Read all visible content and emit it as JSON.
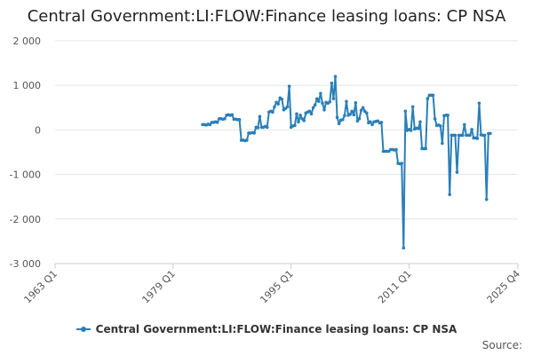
{
  "chart_data": {
    "type": "line",
    "title": "Central Government:LI:FLOW:Finance leasing loans: CP NSA",
    "xlabel": "",
    "ylabel": "",
    "x_tick_labels": [
      "1963 Q1",
      "1979 Q1",
      "1995 Q1",
      "2011 Q1",
      "2025 Q4"
    ],
    "x_tick_years": [
      1963.0,
      1979.0,
      1995.0,
      2011.0,
      2025.75
    ],
    "xlim": [
      1963.0,
      2025.75
    ],
    "y_ticks": [
      -3000,
      -2000,
      -1000,
      0,
      1000,
      2000
    ],
    "y_tick_labels": [
      "-3 000",
      "-2 000",
      "-1 000",
      "0",
      "1 000",
      "2 000"
    ],
    "ylim": [
      -3000,
      2000
    ],
    "grid": true,
    "legend_position": "bottom",
    "series": [
      {
        "name": "Central Government:LI:FLOW:Finance leasing loans: CP NSA",
        "color": "#2b7fb8",
        "points": [
          [
            1983.0,
            120
          ],
          [
            1983.25,
            120
          ],
          [
            1983.5,
            110
          ],
          [
            1983.75,
            130
          ],
          [
            1984.0,
            120
          ],
          [
            1984.25,
            170
          ],
          [
            1984.5,
            170
          ],
          [
            1984.75,
            180
          ],
          [
            1985.0,
            170
          ],
          [
            1985.25,
            250
          ],
          [
            1985.5,
            250
          ],
          [
            1985.75,
            240
          ],
          [
            1986.0,
            250
          ],
          [
            1986.25,
            330
          ],
          [
            1986.5,
            340
          ],
          [
            1986.75,
            330
          ],
          [
            1987.0,
            340
          ],
          [
            1987.25,
            240
          ],
          [
            1987.5,
            240
          ],
          [
            1987.75,
            230
          ],
          [
            1988.0,
            230
          ],
          [
            1988.25,
            -230
          ],
          [
            1988.5,
            -230
          ],
          [
            1988.75,
            -240
          ],
          [
            1989.0,
            -230
          ],
          [
            1989.25,
            -70
          ],
          [
            1989.5,
            -70
          ],
          [
            1989.75,
            -60
          ],
          [
            1990.0,
            -70
          ],
          [
            1990.25,
            60
          ],
          [
            1990.5,
            50
          ],
          [
            1990.75,
            300
          ],
          [
            1991.0,
            60
          ],
          [
            1991.25,
            60
          ],
          [
            1991.5,
            80
          ],
          [
            1991.75,
            60
          ],
          [
            1992.0,
            400
          ],
          [
            1992.25,
            420
          ],
          [
            1992.5,
            400
          ],
          [
            1992.75,
            520
          ],
          [
            1993.0,
            620
          ],
          [
            1993.25,
            580
          ],
          [
            1993.5,
            720
          ],
          [
            1993.75,
            690
          ],
          [
            1994.0,
            450
          ],
          [
            1994.25,
            480
          ],
          [
            1994.5,
            520
          ],
          [
            1994.75,
            980
          ],
          [
            1995.0,
            60
          ],
          [
            1995.25,
            90
          ],
          [
            1995.5,
            100
          ],
          [
            1995.75,
            360
          ],
          [
            1996.0,
            180
          ],
          [
            1996.25,
            330
          ],
          [
            1996.5,
            250
          ],
          [
            1996.75,
            210
          ],
          [
            1997.0,
            380
          ],
          [
            1997.25,
            400
          ],
          [
            1997.5,
            420
          ],
          [
            1997.75,
            360
          ],
          [
            1998.0,
            500
          ],
          [
            1998.25,
            560
          ],
          [
            1998.5,
            700
          ],
          [
            1998.75,
            640
          ],
          [
            1999.0,
            820
          ],
          [
            1999.25,
            600
          ],
          [
            1999.5,
            450
          ],
          [
            1999.75,
            620
          ],
          [
            2000.0,
            600
          ],
          [
            2000.25,
            630
          ],
          [
            2000.5,
            1050
          ],
          [
            2000.75,
            700
          ],
          [
            2001.0,
            1200
          ],
          [
            2001.25,
            280
          ],
          [
            2001.5,
            140
          ],
          [
            2001.75,
            220
          ],
          [
            2002.0,
            230
          ],
          [
            2002.25,
            320
          ],
          [
            2002.5,
            640
          ],
          [
            2002.75,
            330
          ],
          [
            2003.0,
            350
          ],
          [
            2003.25,
            420
          ],
          [
            2003.5,
            340
          ],
          [
            2003.75,
            610
          ],
          [
            2004.0,
            200
          ],
          [
            2004.25,
            250
          ],
          [
            2004.5,
            440
          ],
          [
            2004.75,
            500
          ],
          [
            2005.0,
            420
          ],
          [
            2005.25,
            380
          ],
          [
            2005.5,
            160
          ],
          [
            2005.75,
            180
          ],
          [
            2006.0,
            120
          ],
          [
            2006.25,
            180
          ],
          [
            2006.5,
            190
          ],
          [
            2006.75,
            200
          ],
          [
            2007.0,
            160
          ],
          [
            2007.25,
            170
          ],
          [
            2007.5,
            -480
          ],
          [
            2007.75,
            -480
          ],
          [
            2008.0,
            -480
          ],
          [
            2008.25,
            -480
          ],
          [
            2008.5,
            -440
          ],
          [
            2008.75,
            -440
          ],
          [
            2009.0,
            -450
          ],
          [
            2009.25,
            -440
          ],
          [
            2009.5,
            -750
          ],
          [
            2009.75,
            -760
          ],
          [
            2010.0,
            -750
          ],
          [
            2010.25,
            -2650
          ],
          [
            2010.5,
            420
          ],
          [
            2010.75,
            -10
          ],
          [
            2011.0,
            10
          ],
          [
            2011.25,
            -10
          ],
          [
            2011.5,
            520
          ],
          [
            2011.75,
            20
          ],
          [
            2012.0,
            40
          ],
          [
            2012.25,
            30
          ],
          [
            2012.5,
            180
          ],
          [
            2012.75,
            -420
          ],
          [
            2013.0,
            -420
          ],
          [
            2013.25,
            -420
          ],
          [
            2013.5,
            700
          ],
          [
            2013.75,
            780
          ],
          [
            2014.0,
            780
          ],
          [
            2014.25,
            780
          ],
          [
            2014.5,
            250
          ],
          [
            2014.75,
            100
          ],
          [
            2015.0,
            110
          ],
          [
            2015.25,
            90
          ],
          [
            2015.5,
            -300
          ],
          [
            2015.75,
            320
          ],
          [
            2016.0,
            330
          ],
          [
            2016.25,
            330
          ],
          [
            2016.5,
            -1450
          ],
          [
            2016.75,
            -120
          ],
          [
            2017.0,
            -120
          ],
          [
            2017.25,
            -120
          ],
          [
            2017.5,
            -950
          ],
          [
            2017.75,
            -120
          ],
          [
            2018.0,
            -120
          ],
          [
            2018.25,
            -120
          ],
          [
            2018.5,
            120
          ],
          [
            2018.75,
            -120
          ],
          [
            2019.0,
            -120
          ],
          [
            2019.25,
            -120
          ],
          [
            2019.5,
            10
          ],
          [
            2019.75,
            -180
          ],
          [
            2020.0,
            -180
          ],
          [
            2020.25,
            -190
          ],
          [
            2020.5,
            600
          ],
          [
            2020.75,
            -110
          ],
          [
            2021.0,
            -120
          ],
          [
            2021.25,
            -120
          ],
          [
            2021.5,
            -1560
          ],
          [
            2021.75,
            -80
          ],
          [
            2022.0,
            -80
          ]
        ]
      }
    ]
  },
  "legend": {
    "label": "Central Government:LI:FLOW:Finance leasing loans: CP NSA"
  },
  "footer": {
    "source_label": "Source:"
  }
}
